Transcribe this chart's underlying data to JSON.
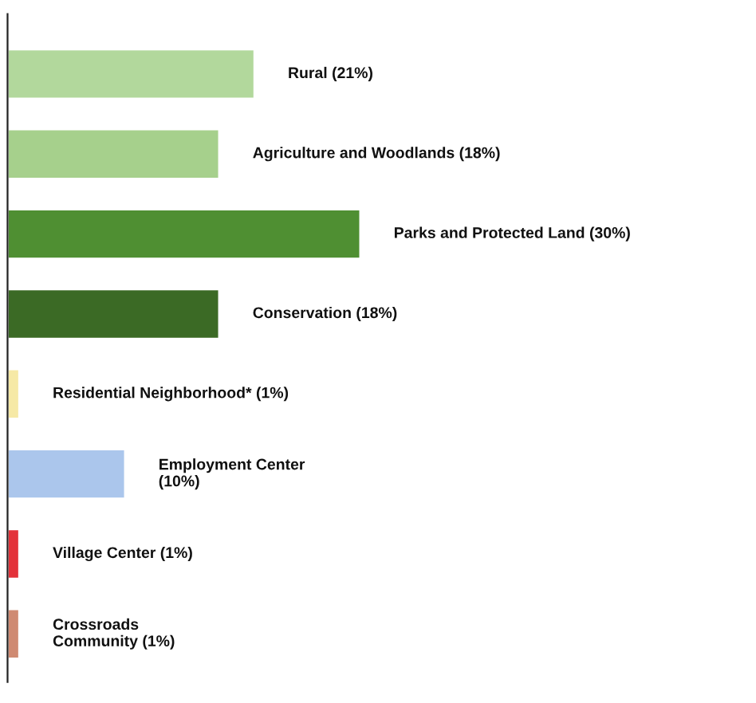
{
  "chart_data": {
    "type": "bar",
    "orientation": "horizontal",
    "categories": [
      "Rural",
      "Agriculture and Woodlands",
      "Parks and Protected Land",
      "Conservation",
      "Residential Neighborhood*",
      "Employment Center",
      "Village Center",
      "Crossroads\nCommunity"
    ],
    "values": [
      21,
      18,
      30,
      18,
      1,
      10,
      1,
      1
    ],
    "value_labels": [
      "(21%)",
      "(18%)",
      "(30%)",
      "(18%)",
      "(1%)",
      "(10%)",
      "(1%)",
      "(1%)"
    ],
    "colors": [
      "#b2d89c",
      "#a6d08c",
      "#4f8f32",
      "#3b6a25",
      "#f6e9a6",
      "#abc6ec",
      "#e3323a",
      "#cf8a72"
    ]
  }
}
